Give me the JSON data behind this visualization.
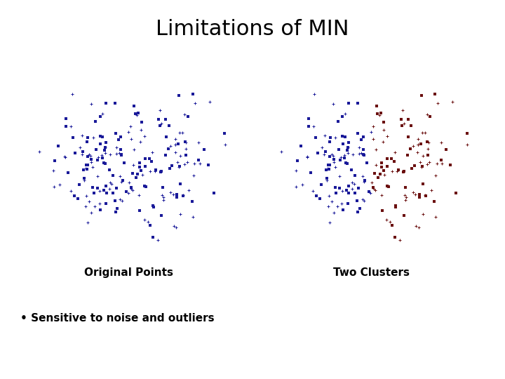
{
  "title": "Limitations of MIN",
  "title_fontsize": 22,
  "title_fontweight": "normal",
  "left_label": "Original Points",
  "right_label": "Two Clusters",
  "bullet_text": "• Sensitive to noise and outliers",
  "label_fontsize": 11,
  "bullet_fontsize": 11,
  "background_color": "#ffffff",
  "left_color": "#1a1a99",
  "cluster1_color": "#1a1a99",
  "cluster2_color": "#6b1010",
  "point_size_dot": 6,
  "point_size_plus": 5,
  "seed": 42,
  "n_points": 220
}
